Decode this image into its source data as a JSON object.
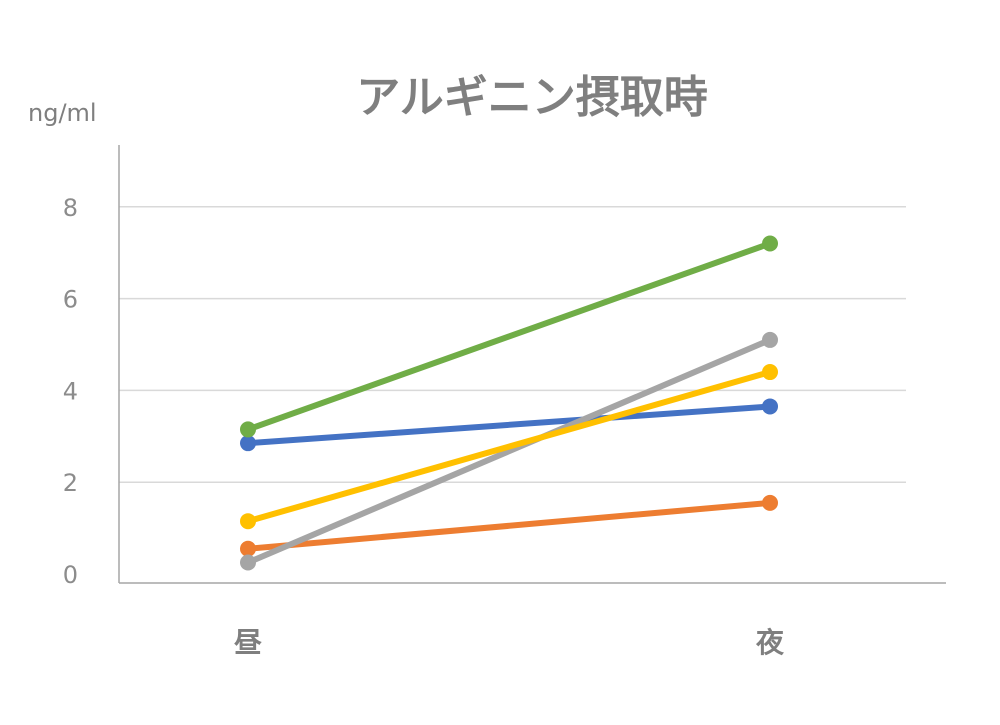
{
  "chart_data": {
    "type": "line",
    "title": "アルギニン摂取時",
    "ylabel": "ng/ml",
    "xlabel": "",
    "categories": [
      "昼",
      "夜"
    ],
    "ylim": [
      0,
      9
    ],
    "yticks": [
      0,
      2,
      4,
      6,
      8
    ],
    "grid": true,
    "legend": "none",
    "series": [
      {
        "color": "#4472c4",
        "values": [
          2.85,
          3.65
        ]
      },
      {
        "color": "#ed7d31",
        "values": [
          0.55,
          1.55
        ]
      },
      {
        "color": "#a5a5a5",
        "values": [
          0.25,
          5.1
        ]
      },
      {
        "color": "#ffc000",
        "values": [
          1.15,
          4.4
        ]
      },
      {
        "color": "#70ad47",
        "values": [
          3.15,
          7.2
        ]
      }
    ]
  }
}
